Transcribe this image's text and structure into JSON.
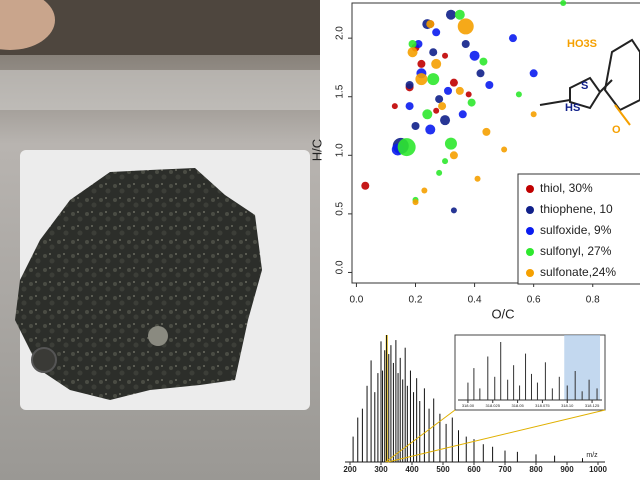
{
  "chart_data": [
    {
      "type": "scatter",
      "xlabel": "O/C",
      "ylabel": "H/C",
      "xlim": [
        -0.015,
        0.96
      ],
      "ylim": [
        -0.09,
        2.3
      ],
      "xticks": [
        {
          "value": 0,
          "label": "0.0"
        },
        0.2,
        0.4,
        0.6,
        0.8
      ],
      "yticks": [
        {
          "value": 0,
          "label": "0.0"
        },
        0.5,
        {
          "value": 1,
          "label": "1.0"
        },
        1.5,
        {
          "value": 2,
          "label": "2.0"
        }
      ],
      "annotations": [
        "HO3S",
        "HS",
        "S",
        "O"
      ],
      "series": [
        {
          "name": "thiol, 30%",
          "color": "#c00000",
          "x": [
            0.03,
            0.13,
            0.18,
            0.22,
            0.25,
            0.3,
            0.33,
            0.38,
            0.2,
            0.27
          ],
          "values": [
            0.74,
            1.42,
            1.58,
            1.78,
            2.12,
            1.85,
            1.62,
            1.52,
            1.92,
            1.38
          ],
          "sizes": [
            4,
            3,
            4,
            4,
            4,
            3,
            4,
            3,
            4,
            3
          ]
        },
        {
          "name": "thiophene, 10",
          "color": "#10208a",
          "x": [
            0.15,
            0.2,
            0.24,
            0.28,
            0.33,
            0.37,
            0.42,
            0.3,
            0.18,
            0.26,
            0.32
          ],
          "values": [
            1.08,
            1.25,
            2.12,
            1.48,
            0.53,
            1.95,
            1.7,
            1.3,
            1.6,
            1.88,
            2.2
          ],
          "sizes": [
            8,
            4,
            5,
            4,
            3,
            4,
            4,
            5,
            4,
            4,
            5
          ]
        },
        {
          "name": "sulfoxide, 9%",
          "color": "#0a1cf0",
          "x": [
            0.14,
            0.18,
            0.22,
            0.27,
            0.31,
            0.36,
            0.4,
            0.45,
            0.53,
            0.6,
            0.25,
            0.21
          ],
          "values": [
            1.05,
            1.42,
            1.7,
            2.05,
            1.55,
            1.35,
            1.85,
            1.6,
            2.0,
            1.7,
            1.22,
            1.95
          ],
          "sizes": [
            6,
            4,
            5,
            4,
            4,
            4,
            5,
            4,
            4,
            4,
            5,
            4
          ]
        },
        {
          "name": "sulfonyl, 27%",
          "color": "#2ee82e",
          "x": [
            0.17,
            0.2,
            0.24,
            0.28,
            0.32,
            0.35,
            0.39,
            0.43,
            0.55,
            0.7,
            0.19,
            0.3,
            0.26
          ],
          "values": [
            1.07,
            0.62,
            1.35,
            0.85,
            1.1,
            2.2,
            1.45,
            1.8,
            1.52,
            2.3,
            1.95,
            0.95,
            1.65
          ],
          "sizes": [
            9,
            3,
            5,
            3,
            6,
            5,
            4,
            4,
            3,
            3,
            4,
            3,
            6
          ]
        },
        {
          "name": "sulfonate,24%",
          "color": "#f5a000",
          "x": [
            0.19,
            0.22,
            0.25,
            0.29,
            0.33,
            0.37,
            0.41,
            0.44,
            0.5,
            0.6,
            0.23,
            0.27,
            0.35,
            0.2
          ],
          "values": [
            1.88,
            1.65,
            2.12,
            1.42,
            1.0,
            2.1,
            0.8,
            1.2,
            1.05,
            1.35,
            0.7,
            1.78,
            1.55,
            0.6
          ],
          "sizes": [
            5,
            6,
            4,
            4,
            4,
            8,
            3,
            4,
            3,
            3,
            3,
            5,
            4,
            3
          ]
        }
      ]
    },
    {
      "type": "bar",
      "xlabel": "m/z",
      "xlim": [
        200,
        1000
      ],
      "ylim": [
        0,
        100
      ],
      "xticks": [
        200,
        300,
        400,
        500,
        600,
        700,
        800,
        900,
        1000
      ],
      "highlight": [
        315,
        322
      ],
      "color": "#111111",
      "x": [
        210,
        225,
        240,
        255,
        268,
        280,
        290,
        300,
        305,
        312,
        318,
        325,
        332,
        340,
        348,
        355,
        362,
        370,
        378,
        385,
        395,
        405,
        415,
        425,
        440,
        455,
        470,
        490,
        510,
        530,
        550,
        575,
        600,
        630,
        660,
        700,
        740,
        800,
        860,
        950
      ],
      "values": [
        20,
        35,
        42,
        60,
        80,
        55,
        70,
        95,
        72,
        88,
        100,
        85,
        92,
        78,
        96,
        70,
        82,
        65,
        90,
        60,
        72,
        55,
        66,
        48,
        58,
        42,
        50,
        38,
        30,
        35,
        25,
        20,
        18,
        14,
        12,
        9,
        8,
        6,
        5,
        3
      ]
    },
    {
      "type": "bar",
      "xlim": [
        317.99,
        318.135
      ],
      "ylim": [
        0,
        100
      ],
      "xticks": [
        {
          "value": 318,
          "label": "318.00"
        },
        318.025,
        {
          "value": 318.05,
          "label": "318.05"
        },
        318.075,
        {
          "value": 318.1,
          "label": "318.10"
        },
        318.125
      ],
      "highlight": [
        318.097,
        318.133
      ],
      "color": "#333333",
      "x": [
        318.0,
        318.006,
        318.012,
        318.02,
        318.027,
        318.033,
        318.04,
        318.046,
        318.052,
        318.058,
        318.064,
        318.07,
        318.078,
        318.085,
        318.092,
        318.1,
        318.108,
        318.115,
        318.122,
        318.13
      ],
      "values": [
        30,
        55,
        20,
        75,
        40,
        100,
        35,
        60,
        25,
        80,
        45,
        30,
        65,
        20,
        40,
        25,
        50,
        15,
        35,
        20
      ]
    }
  ]
}
